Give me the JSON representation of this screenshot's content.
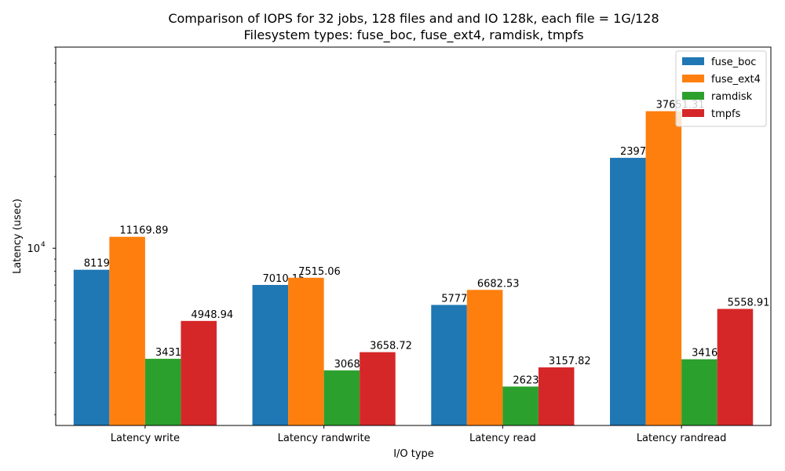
{
  "chart_data": {
    "type": "bar",
    "title_line1": "Comparison of IOPS for 32 jobs, 128 files and  and IO 128k, each file = 1G/128",
    "title_line2": "Filesystem types: fuse_boc, fuse_ext4, ramdisk, tmpfs",
    "xlabel": "I/O type",
    "ylabel": "Latency (usec)",
    "yscale": "log",
    "ylim": [
      1800,
      70000
    ],
    "y_tick_base": "10",
    "y_tick_exp": "4",
    "legend_position": "top-right",
    "categories": [
      "Latency write",
      "Latency randwrite",
      "Latency read",
      "Latency randread"
    ],
    "series": [
      {
        "name": "fuse_boc",
        "color": "#1f77b4",
        "values": [
          8119.76,
          7010.15,
          5777.38,
          23977.77
        ],
        "labels": [
          "8119.76",
          "7010.15",
          "5777.38",
          "23977.77"
        ]
      },
      {
        "name": "fuse_ext4",
        "color": "#ff7f0e",
        "values": [
          11169.89,
          7515.06,
          6682.53,
          37651.31
        ],
        "labels": [
          "11169.89",
          "7515.06",
          "6682.53",
          "37651.31"
        ]
      },
      {
        "name": "ramdisk",
        "color": "#2ca02c",
        "values": [
          3431.37,
          3068.31,
          2623.25,
          3416.01
        ],
        "labels": [
          "3431.37",
          "3068.31",
          "2623.25",
          "3416.01"
        ]
      },
      {
        "name": "tmpfs",
        "color": "#d62728",
        "values": [
          4948.94,
          3658.72,
          3157.82,
          5558.91
        ],
        "labels": [
          "4948.94",
          "3658.72",
          "3157.82",
          "5558.91"
        ]
      }
    ]
  }
}
